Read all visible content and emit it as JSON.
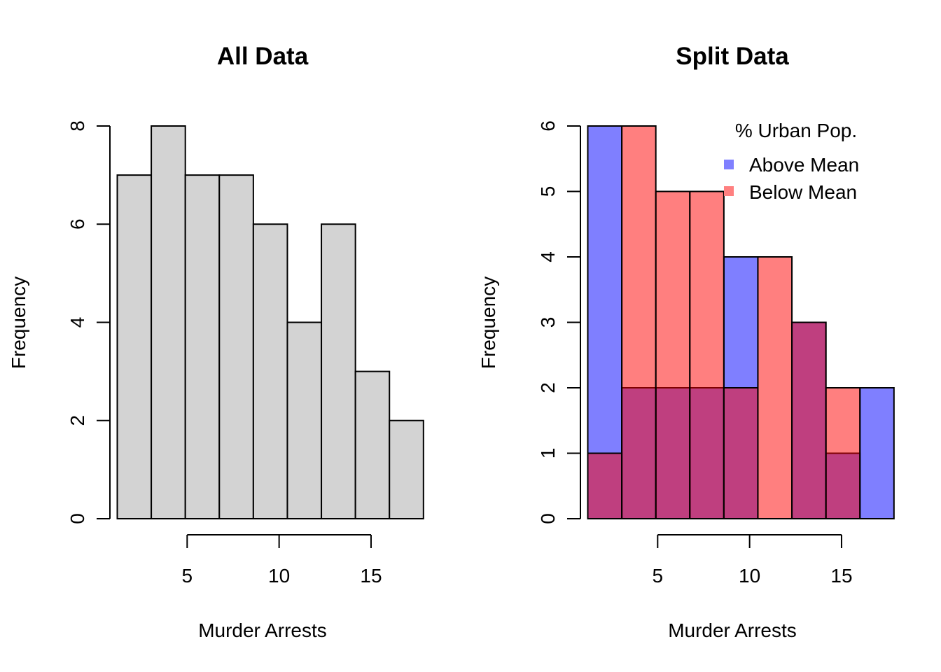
{
  "chart_data": [
    {
      "type": "bar",
      "subtype": "histogram",
      "title": "All Data",
      "xlabel": "Murder Arrests",
      "ylabel": "Frequency",
      "xlim": [
        0.8,
        17.4
      ],
      "ylim": [
        0,
        8
      ],
      "x_ticks": [
        5,
        10,
        15
      ],
      "y_ticks": [
        0,
        2,
        4,
        6,
        8
      ],
      "grid": false,
      "bar_color": "#d3d3d3",
      "bins": [
        {
          "start": 1.2,
          "end": 3.05,
          "count": 7
        },
        {
          "start": 3.05,
          "end": 4.9,
          "count": 8
        },
        {
          "start": 4.9,
          "end": 6.75,
          "count": 7
        },
        {
          "start": 6.75,
          "end": 8.6,
          "count": 7
        },
        {
          "start": 8.6,
          "end": 10.45,
          "count": 6
        },
        {
          "start": 10.45,
          "end": 12.3,
          "count": 4
        },
        {
          "start": 12.3,
          "end": 14.15,
          "count": 6
        },
        {
          "start": 14.15,
          "end": 16.0,
          "count": 3
        },
        {
          "start": 16.0,
          "end": 17.85,
          "count": 2
        }
      ]
    },
    {
      "type": "bar",
      "subtype": "overlaid-histogram",
      "title": "Split Data",
      "xlabel": "Murder Arrests",
      "ylabel": "Frequency",
      "xlim": [
        0.8,
        17.4
      ],
      "ylim": [
        0,
        6
      ],
      "x_ticks": [
        5,
        10,
        15
      ],
      "y_ticks": [
        0,
        1,
        2,
        3,
        4,
        5,
        6
      ],
      "grid": false,
      "legend": {
        "title": "% Urban Pop.",
        "position": "top-right",
        "entries": [
          {
            "label": "Above Mean",
            "color": "#8080ff"
          },
          {
            "label": "Below Mean",
            "color": "#ff8080"
          }
        ]
      },
      "series": [
        {
          "name": "Above Mean",
          "color": "#0000ff",
          "opacity": 0.5,
          "bins": [
            {
              "start": 1.2,
              "end": 3.05,
              "count": 6
            },
            {
              "start": 3.05,
              "end": 4.9,
              "count": 2
            },
            {
              "start": 4.9,
              "end": 6.75,
              "count": 2
            },
            {
              "start": 6.75,
              "end": 8.6,
              "count": 2
            },
            {
              "start": 8.6,
              "end": 10.45,
              "count": 4
            },
            {
              "start": 10.45,
              "end": 12.3,
              "count": 0
            },
            {
              "start": 12.3,
              "end": 14.15,
              "count": 3
            },
            {
              "start": 14.15,
              "end": 16.0,
              "count": 1
            },
            {
              "start": 16.0,
              "end": 17.85,
              "count": 2
            }
          ]
        },
        {
          "name": "Below Mean",
          "color": "#ff0000",
          "opacity": 0.5,
          "bins": [
            {
              "start": 1.2,
              "end": 3.05,
              "count": 1
            },
            {
              "start": 3.05,
              "end": 4.9,
              "count": 6
            },
            {
              "start": 4.9,
              "end": 6.75,
              "count": 5
            },
            {
              "start": 6.75,
              "end": 8.6,
              "count": 5
            },
            {
              "start": 8.6,
              "end": 10.45,
              "count": 2
            },
            {
              "start": 10.45,
              "end": 12.3,
              "count": 4
            },
            {
              "start": 12.3,
              "end": 14.15,
              "count": 3
            },
            {
              "start": 14.15,
              "end": 16.0,
              "count": 2
            },
            {
              "start": 16.0,
              "end": 17.85,
              "count": 0
            }
          ]
        }
      ]
    }
  ]
}
